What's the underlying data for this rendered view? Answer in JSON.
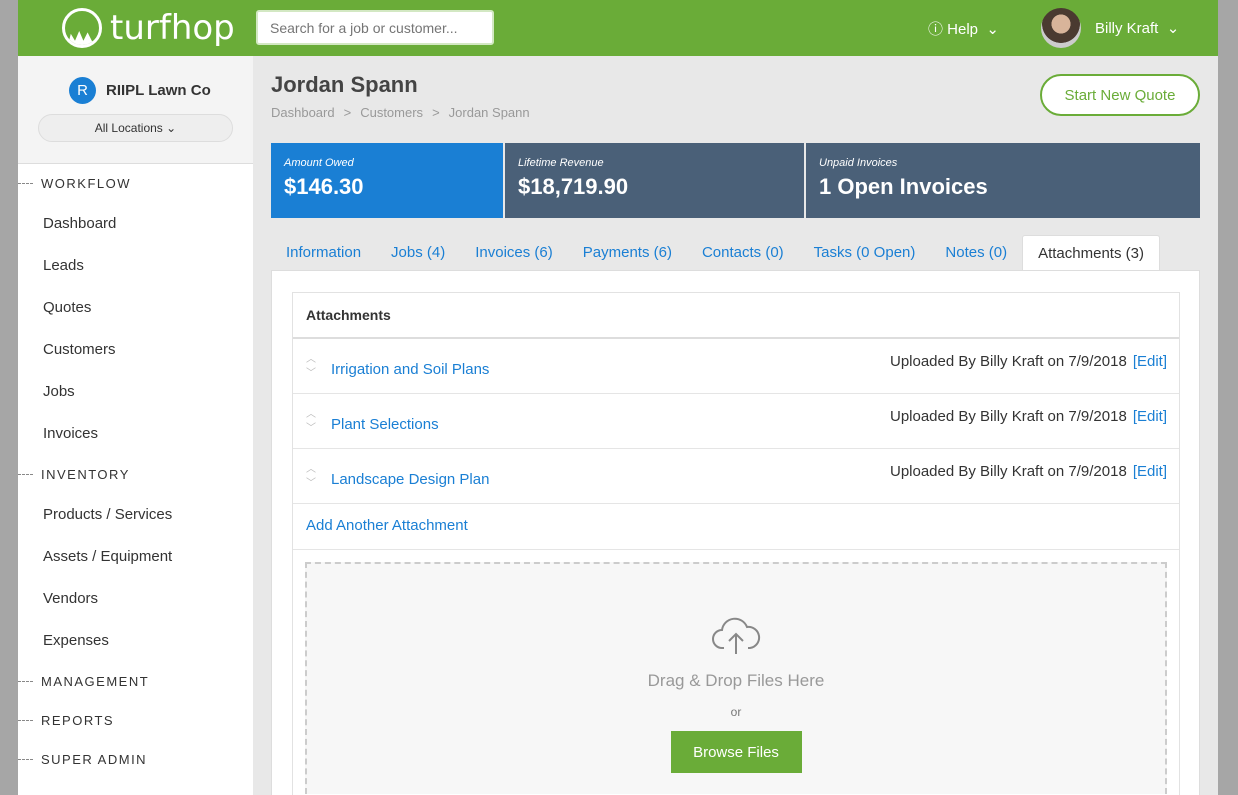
{
  "brand": "turfhop",
  "search": {
    "placeholder": "Search for a job or customer..."
  },
  "header": {
    "help": "Help",
    "user": "Billy Kraft"
  },
  "sidebar": {
    "org_initial": "R",
    "org": "RIIPL Lawn Co",
    "location": "All Locations",
    "workflow": "WORKFLOW",
    "workflow_items": [
      "Dashboard",
      "Leads",
      "Quotes",
      "Customers",
      "Jobs",
      "Invoices"
    ],
    "inventory": "INVENTORY",
    "inventory_items": [
      "Products / Services",
      "Assets / Equipment",
      "Vendors",
      "Expenses"
    ],
    "management": "MANAGEMENT",
    "reports": "REPORTS",
    "super_admin": "SUPER ADMIN"
  },
  "page": {
    "title": "Jordan Spann",
    "breadcrumb": [
      "Dashboard",
      "Customers",
      "Jordan Spann"
    ],
    "start_quote": "Start New Quote"
  },
  "stats": [
    {
      "label": "Amount Owed",
      "value": "$146.30",
      "color": "#1a7fd4"
    },
    {
      "label": "Lifetime Revenue",
      "value": "$18,719.90",
      "color": "#4a6078"
    },
    {
      "label": "Unpaid Invoices",
      "value": "1 Open Invoices",
      "color": "#4a6078"
    }
  ],
  "tabs": [
    "Information",
    "Jobs (4)",
    "Invoices (6)",
    "Payments (6)",
    "Contacts (0)",
    "Tasks (0 Open)",
    "Notes (0)",
    "Attachments (3)"
  ],
  "attachments": {
    "title": "Attachments",
    "items": [
      {
        "name": "Irrigation and Soil Plans",
        "meta": "Uploaded By Billy Kraft on 7/9/2018",
        "edit": "[Edit]"
      },
      {
        "name": "Plant Selections",
        "meta": "Uploaded By Billy Kraft on 7/9/2018",
        "edit": "[Edit]"
      },
      {
        "name": "Landscape Design Plan",
        "meta": "Uploaded By Billy Kraft on 7/9/2018",
        "edit": "[Edit]"
      }
    ],
    "add": "Add Another Attachment",
    "drop": "Drag & Drop Files Here",
    "or": "or",
    "browse": "Browse Files"
  }
}
